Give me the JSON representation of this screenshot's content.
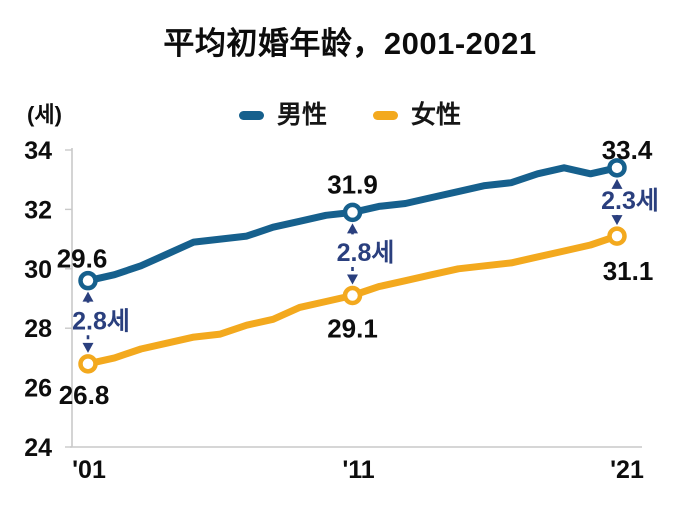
{
  "page": {
    "background": "#ffffff"
  },
  "chart_data": {
    "type": "line",
    "title": "平均初婚年龄，2001-2021",
    "unit_label": "(세)",
    "xlabel": "",
    "ylabel": "(세)",
    "x": [
      2001,
      2002,
      2003,
      2004,
      2005,
      2006,
      2007,
      2008,
      2009,
      2010,
      2011,
      2012,
      2013,
      2014,
      2015,
      2016,
      2017,
      2018,
      2019,
      2020,
      2021
    ],
    "x_tick_labels": [
      "'01",
      "'11",
      "'21"
    ],
    "x_tick_years": [
      2001,
      2011,
      2021
    ],
    "y_ticks": [
      24,
      26,
      28,
      30,
      32,
      34
    ],
    "y_tick_labels": [
      "24",
      "26",
      "28",
      "30",
      "32",
      "34"
    ],
    "ylim": [
      24,
      34
    ],
    "grid": "off",
    "legend_position": "top-center",
    "series": [
      {
        "name": "男性",
        "color": "#16608D",
        "values": [
          29.6,
          29.8,
          30.1,
          30.5,
          30.9,
          31.0,
          31.1,
          31.4,
          31.6,
          31.8,
          31.9,
          32.1,
          32.2,
          32.4,
          32.6,
          32.8,
          32.9,
          33.2,
          33.4,
          33.2,
          33.4
        ],
        "labeled_points": [
          {
            "year": 2001,
            "value": 29.6,
            "label": "29.6"
          },
          {
            "year": 2011,
            "value": 31.9,
            "label": "31.9"
          },
          {
            "year": 2021,
            "value": 33.4,
            "label": "33.4"
          }
        ]
      },
      {
        "name": "女性",
        "color": "#F3A91E",
        "values": [
          26.8,
          27.0,
          27.3,
          27.5,
          27.7,
          27.8,
          28.1,
          28.3,
          28.7,
          28.9,
          29.1,
          29.4,
          29.6,
          29.8,
          30.0,
          30.1,
          30.2,
          30.4,
          30.6,
          30.8,
          31.1
        ],
        "labeled_points": [
          {
            "year": 2001,
            "value": 26.8,
            "label": "26.8"
          },
          {
            "year": 2011,
            "value": 29.1,
            "label": "29.1"
          },
          {
            "year": 2021,
            "value": 31.1,
            "label": "31.1"
          }
        ]
      }
    ],
    "gap_annotations": [
      {
        "year": 2001,
        "label": "2.8세"
      },
      {
        "year": 2011,
        "label": "2.8세"
      },
      {
        "year": 2021,
        "label": "2.3세"
      }
    ],
    "annotation_color": "#2A3F7E",
    "axis_color": "#C9C9C9",
    "label_color": "#0D0D0D"
  }
}
